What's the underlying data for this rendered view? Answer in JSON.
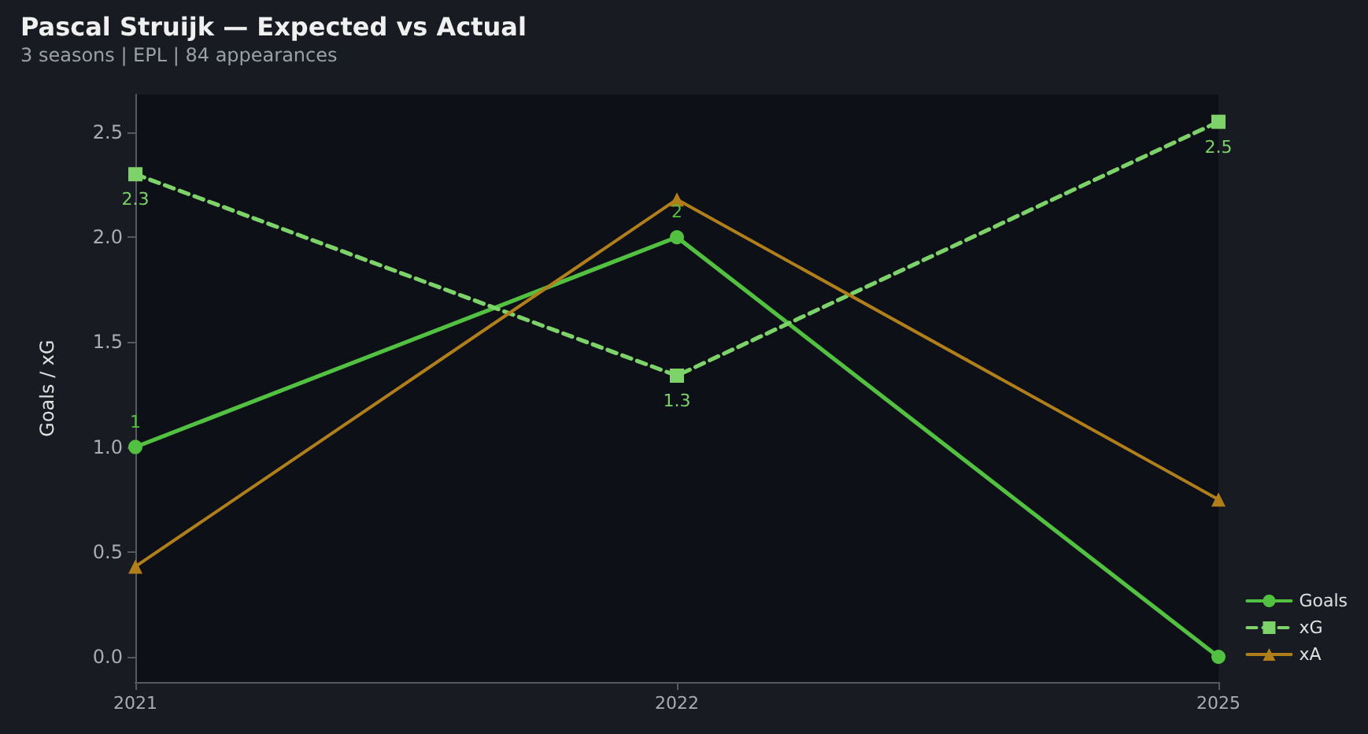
{
  "chart_data": {
    "type": "line",
    "title": "Pascal Struijk — Expected vs Actual",
    "subtitle": "3 seasons | EPL | 84 appearances",
    "ylabel": "Goals / xG",
    "categories": [
      "2021",
      "2022",
      "2025"
    ],
    "series": [
      {
        "name": "Goals",
        "color": "#52c041",
        "values": [
          1,
          2,
          0
        ],
        "marker": "circle",
        "line_style": "solid",
        "value_labels": [
          "1",
          "2",
          null
        ]
      },
      {
        "name": "xG",
        "color": "#7dd36a",
        "values": [
          2.3,
          1.34,
          2.55
        ],
        "marker": "square",
        "line_style": "dashed",
        "value_labels": [
          "2.3",
          "1.3",
          "2.5"
        ]
      },
      {
        "name": "xA",
        "color": "#b07f1c",
        "values": [
          0.43,
          2.18,
          0.75
        ],
        "marker": "triangle",
        "line_style": "solid"
      }
    ],
    "ylim": [
      -0.12,
      2.68
    ],
    "yticks": [
      {
        "value": 0,
        "label": "0.0"
      },
      0.5,
      {
        "value": 1,
        "label": "1.0"
      },
      1.5,
      {
        "value": 2,
        "label": "2.0"
      },
      2.5
    ],
    "grid": false,
    "legend": "bottom right"
  }
}
